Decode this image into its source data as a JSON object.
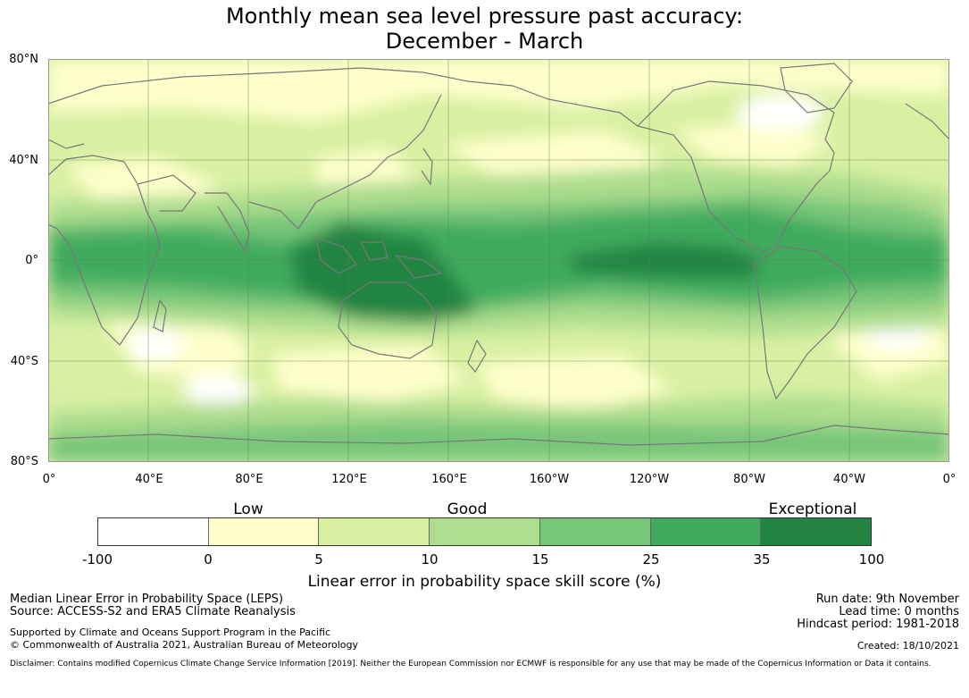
{
  "title": {
    "line1": "Monthly mean sea level pressure past accuracy:",
    "line2": "December - March"
  },
  "map": {
    "lat_labels": [
      "80°N",
      "40°N",
      "0°",
      "40°S",
      "80°S"
    ],
    "lon_labels": [
      "0°",
      "40°E",
      "80°E",
      "120°E",
      "160°E",
      "160°W",
      "120°W",
      "80°W",
      "40°W",
      "0°"
    ],
    "colors": {
      "land_outline": "#787878",
      "grid": "#6b8a5e"
    },
    "skill_regions": [
      {
        "name": "tropical-indo-pacific",
        "level": 6
      },
      {
        "name": "eastern-equatorial-pacific",
        "level": 6
      },
      {
        "name": "tropical-atlantic",
        "level": 5
      },
      {
        "name": "southern-ocean-band",
        "level": 4
      }
    ]
  },
  "colorbar": {
    "categories": [
      {
        "label": "Low",
        "position": 1.5
      },
      {
        "label": "Good",
        "position": 3.5
      },
      {
        "label": "Exceptional",
        "position": 6.5
      }
    ],
    "ticks": [
      "-100",
      "0",
      "5",
      "10",
      "15",
      "25",
      "35",
      "100"
    ],
    "colors": [
      "#ffffff",
      "#ffffcc",
      "#d9f0a3",
      "#addd8e",
      "#78c679",
      "#41ab5d",
      "#238443"
    ],
    "label": "Linear error in probability space skill score (%)"
  },
  "footer": {
    "left": {
      "line1": "Median Linear Error in Probability Space (LEPS)",
      "line2": "Source: ACCESS-S2 and ERA5 Climate Reanalysis",
      "support1": "Supported by Climate and Oceans Support Program in the Pacific",
      "support2": "© Commonwealth of Australia 2021, Australian Bureau of Meteorology"
    },
    "right": {
      "run_date": "Run date: 9th November",
      "lead_time": "Lead time: 0 months",
      "hindcast": "Hindcast period: 1981-2018",
      "created": "Created: 18/10/2021"
    },
    "disclaimer": "Disclaimer: Contains modified Copernicus Climate Change Service Information [2019]. Neither the European Commission nor ECMWF is responsible for any use that may be made of the Copernicus Information or Data it contains."
  }
}
